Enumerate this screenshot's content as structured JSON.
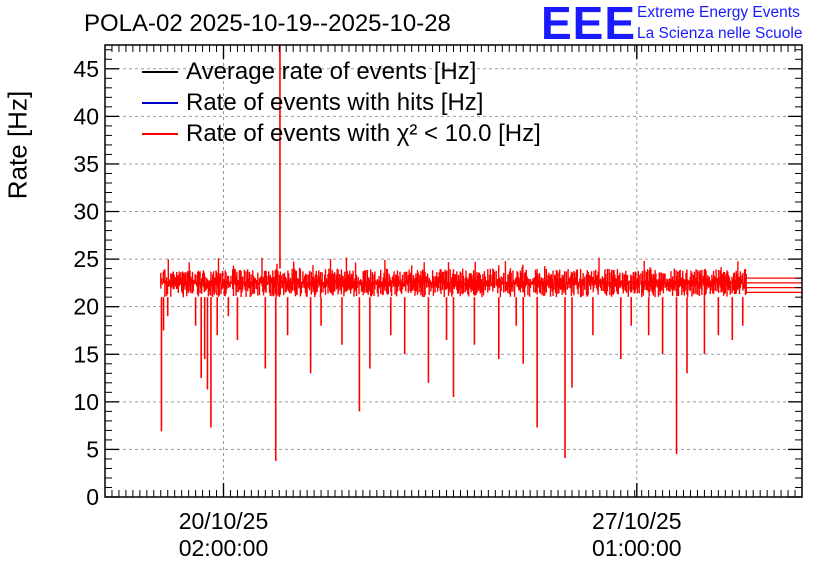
{
  "chart_data": {
    "type": "line",
    "title": "POLA-02 2025-10-19--2025-10-28",
    "ylabel": "Rate [Hz]",
    "xlabel": "",
    "ylim": [
      0,
      47.5
    ],
    "yticks": [
      0,
      5,
      10,
      15,
      20,
      25,
      30,
      35,
      40,
      45
    ],
    "xlim": [
      0,
      1
    ],
    "xticks": [
      {
        "x": 0.17,
        "date": "20/10/25",
        "time": "02:00:00"
      },
      {
        "x": 0.763,
        "date": "27/10/25",
        "time": "01:00:00"
      }
    ],
    "grid": true,
    "legend_position": "top-left",
    "series": [
      {
        "name": "Average rate of events [Hz]",
        "color": "#000000",
        "values": []
      },
      {
        "name": "Rate of events with hits [Hz]",
        "color": "#0000cc",
        "values": []
      },
      {
        "name": "Rate of events with χ² < 10.0 [Hz]",
        "color": "#ff0000",
        "data_start": 0.08,
        "data_end": 0.92,
        "baseline_low": 21.0,
        "baseline_high": 24.0,
        "flat_tail_end": 1.0,
        "flat_tail_values": [
          21.5,
          22.0,
          22.5,
          23.0
        ],
        "dips": [
          {
            "x": 0.081,
            "y": 6.9
          },
          {
            "x": 0.084,
            "y": 17.5
          },
          {
            "x": 0.09,
            "y": 19.0
          },
          {
            "x": 0.13,
            "y": 18.0
          },
          {
            "x": 0.138,
            "y": 12.5
          },
          {
            "x": 0.143,
            "y": 14.5
          },
          {
            "x": 0.147,
            "y": 11.3
          },
          {
            "x": 0.152,
            "y": 7.3
          },
          {
            "x": 0.161,
            "y": 17.0
          },
          {
            "x": 0.177,
            "y": 19.0
          },
          {
            "x": 0.19,
            "y": 16.5
          },
          {
            "x": 0.23,
            "y": 13.5
          },
          {
            "x": 0.245,
            "y": 3.8
          },
          {
            "x": 0.262,
            "y": 17.0
          },
          {
            "x": 0.295,
            "y": 13.0
          },
          {
            "x": 0.31,
            "y": 18.0
          },
          {
            "x": 0.34,
            "y": 16.0
          },
          {
            "x": 0.365,
            "y": 9.0
          },
          {
            "x": 0.38,
            "y": 13.5
          },
          {
            "x": 0.41,
            "y": 17.0
          },
          {
            "x": 0.43,
            "y": 15.0
          },
          {
            "x": 0.464,
            "y": 12.0
          },
          {
            "x": 0.49,
            "y": 16.5
          },
          {
            "x": 0.5,
            "y": 10.5
          },
          {
            "x": 0.53,
            "y": 16.0
          },
          {
            "x": 0.565,
            "y": 14.5
          },
          {
            "x": 0.59,
            "y": 18.0
          },
          {
            "x": 0.6,
            "y": 14.0
          },
          {
            "x": 0.62,
            "y": 7.3
          },
          {
            "x": 0.66,
            "y": 4.1
          },
          {
            "x": 0.67,
            "y": 11.5
          },
          {
            "x": 0.7,
            "y": 17.0
          },
          {
            "x": 0.74,
            "y": 14.5
          },
          {
            "x": 0.755,
            "y": 18.0
          },
          {
            "x": 0.78,
            "y": 17.0
          },
          {
            "x": 0.8,
            "y": 15.0
          },
          {
            "x": 0.82,
            "y": 4.5
          },
          {
            "x": 0.835,
            "y": 13.0
          },
          {
            "x": 0.86,
            "y": 15.0
          },
          {
            "x": 0.88,
            "y": 17.0
          },
          {
            "x": 0.9,
            "y": 16.5
          },
          {
            "x": 0.915,
            "y": 18.0
          }
        ],
        "spikes": [
          {
            "x": 0.251,
            "y": 47.5
          }
        ]
      }
    ]
  },
  "branding": {
    "logo": "EEE",
    "line1": "Extreme Energy Events",
    "line2": "La Scienza nelle Scuole"
  },
  "legend": {
    "item1": "Average rate of events [Hz]",
    "item2": "Rate of events with hits [Hz]",
    "item3": "Rate of events with χ² < 10.0 [Hz]"
  }
}
